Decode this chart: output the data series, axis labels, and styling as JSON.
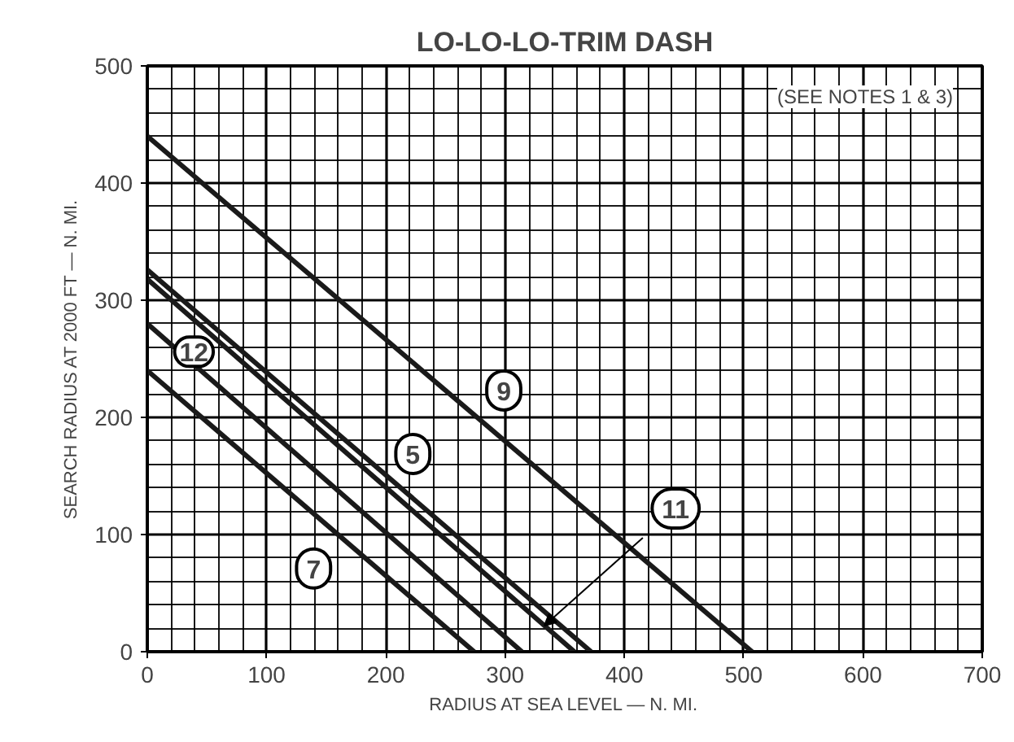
{
  "chart_data": {
    "type": "line",
    "title": "LO-LO-LO-TRIM DASH",
    "xlabel": "RADIUS AT SEA LEVEL — N. MI.",
    "ylabel": "SEARCH RADIUS AT 2000 FT — N. MI.",
    "annotations": [
      "(SEE NOTES 1 & 3)"
    ],
    "series": [
      {
        "name": "9",
        "color": "#1a1a1a",
        "x": [
          0,
          507
        ],
        "values": [
          440,
          0
        ]
      },
      {
        "name": "5",
        "color": "#1a1a1a",
        "x": [
          0,
          372
        ],
        "values": [
          326,
          0
        ]
      },
      {
        "name": "11",
        "color": "#1a1a1a",
        "x": [
          0,
          358
        ],
        "values": [
          318,
          0
        ]
      },
      {
        "name": "12",
        "color": "#1a1a1a",
        "x": [
          0,
          314
        ],
        "values": [
          280,
          0
        ]
      },
      {
        "name": "7",
        "color": "#1a1a1a",
        "x": [
          0,
          274
        ],
        "values": [
          240,
          0
        ]
      }
    ],
    "xlim": [
      0,
      700
    ],
    "ylim": [
      0,
      500
    ],
    "xticks": [
      0,
      100,
      200,
      300,
      400,
      500,
      600,
      700
    ],
    "yticks": [
      0,
      100,
      200,
      300,
      400,
      500
    ],
    "grid": true,
    "marker": "none",
    "line_style": "solid"
  }
}
